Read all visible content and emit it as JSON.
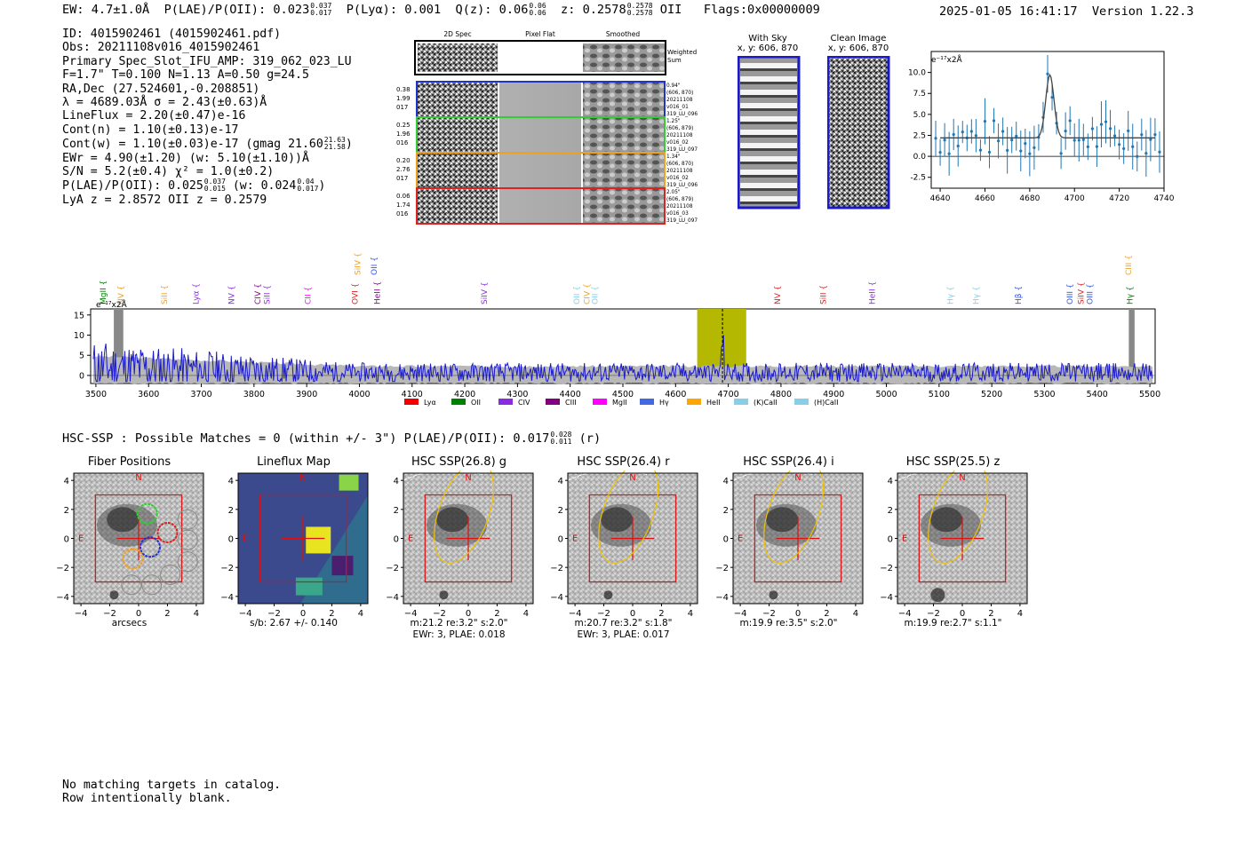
{
  "header": {
    "ew_label": "EW: 4.7±1.0Å",
    "plae_label": "P(LAE)/P(OII): 0.023",
    "plae_hi": "0.037",
    "plae_lo": "0.017",
    "plya_label": "P(Lyα): 0.001",
    "qz_label": "Q(z): 0.06",
    "qz_hi": "0.06",
    "qz_lo": "0.06",
    "z_label": "z: 0.2578",
    "z_hi": "0.2578",
    "z_lo": "0.2578",
    "z_line": "OII",
    "flags": "Flags:0x00000009",
    "timestamp": "2025-01-05 16:41:17",
    "version": "Version 1.22.3"
  },
  "info": {
    "id": "ID: 4015902461 (4015902461.pdf)",
    "obs": "Obs: 20211108v016_4015902461",
    "primary": "Primary Spec_Slot_IFU_AMP: 319_062_023_LU",
    "fparams": "F=1.7\"  T=0.100  N=1.13  A=0.50  g=24.5",
    "radec": "RA,Dec (27.524601,-0.208851)",
    "lambda": "λ = 4689.03Å  σ = 2.43(±0.63)Å",
    "lineflux": "LineFlux = 2.20(±0.47)e-16",
    "contn": "Cont(n) = 1.10(±0.13)e-17",
    "contw": "Cont(w) = 1.10(±0.03)e-17 (gmag 21.60",
    "contw_hi": "21.63",
    "contw_lo": "21.58",
    "contw_end": ")",
    "ewr": "EWr = 4.90(±1.20)  (w: 5.10(±1.10))Å",
    "sn": "S/N = 5.2(±0.4)  χ² = 1.0(±0.2)",
    "plae": "P(LAE)/P(OII): 0.025",
    "plae_hi": "0.037",
    "plae_lo": "0.015",
    "plae_w": "(w: 0.024",
    "plae_w_hi": "0.04",
    "plae_w_lo": "0.017",
    "plae_w_end": ")",
    "lya": "LyA z = 2.8572  OII z = 0.2579"
  },
  "spec2d": {
    "col_2dspec": "2D Spec",
    "col_pixelflat": "Pixel Flat",
    "col_smoothed": "Smoothed",
    "weighted": "Weighted\nSum",
    "rows": [
      {
        "l1": "0.38",
        "l2": "1.99",
        "l3": "017",
        "r1": "0.94\"",
        "r2": "(606, 870)",
        "r3": "20211108",
        "r4": "v016_01",
        "r5": "319_LU_096",
        "color": "#2233cc"
      },
      {
        "l1": "0.25",
        "l2": "1.96",
        "l3": "016",
        "r1": "1.25\"",
        "r2": "(606, 879)",
        "r3": "20211108",
        "r4": "v016_02",
        "r5": "319_LU_097",
        "color": "#33cc33"
      },
      {
        "l1": "0.20",
        "l2": "2.76",
        "l3": "017",
        "r1": "1.34\"",
        "r2": "(606, 870)",
        "r3": "20211108",
        "r4": "v016_02",
        "r5": "319_LU_096",
        "color": "#f0a020"
      },
      {
        "l1": "0.06",
        "l2": "1.74",
        "l3": "016",
        "r1": "2.05\"",
        "r2": "(606, 879)",
        "r3": "20211108",
        "r4": "v016_03",
        "r5": "319_LU_097",
        "color": "#dd2222"
      }
    ]
  },
  "sky": {
    "title": "With Sky",
    "coords": "x, y: 606, 870"
  },
  "clean": {
    "title": "Clean Image",
    "coords": "x, y: 606, 870"
  },
  "zoom_chart": {
    "ylabel": "e⁻¹⁷x2Å",
    "xticks": [
      "4640",
      "4660",
      "4680",
      "4700",
      "4720",
      "4740"
    ],
    "yticks": [
      "10.0",
      "7.5",
      "5.0",
      "2.5",
      "0.0",
      "-2.5"
    ]
  },
  "spectrum": {
    "ylabel": "e⁻¹⁷x2Å",
    "yticks": [
      "15",
      "10",
      "5",
      "0"
    ],
    "xticks": [
      "3500",
      "3600",
      "3700",
      "3800",
      "3900",
      "4000",
      "4100",
      "4200",
      "4300",
      "4400",
      "4500",
      "4600",
      "4700",
      "4800",
      "4900",
      "5000",
      "5100",
      "5200",
      "5300",
      "5400",
      "5500"
    ],
    "line_labels": [
      {
        "t": "MgII",
        "c": "#008000",
        "w": 3514,
        "row": 1
      },
      {
        "t": "NV",
        "c": "#f0a020",
        "w": 3547,
        "row": 1
      },
      {
        "t": "SiII",
        "c": "#f0a020",
        "w": 3630,
        "row": 1
      },
      {
        "t": "Lyα",
        "c": "#8a2be2",
        "w": 3690,
        "row": 1
      },
      {
        "t": "NV",
        "c": "#8a2be2",
        "w": 3757,
        "row": 1
      },
      {
        "t": "CIV",
        "c": "#8b008b",
        "w": 3807,
        "row": 1
      },
      {
        "t": "SiII",
        "c": "#8a2be2",
        "w": 3825,
        "row": 1
      },
      {
        "t": "CII",
        "c": "#ff00ff",
        "w": 3902,
        "row": 1
      },
      {
        "t": "OVI",
        "c": "#dd2222",
        "w": 3992,
        "row": 1
      },
      {
        "t": "HeII",
        "c": "#8b008b",
        "w": 4034,
        "row": 1
      },
      {
        "t": "SiIV",
        "c": "#f0a020",
        "w": 3997,
        "row": 0
      },
      {
        "t": "OII",
        "c": "#3355dd",
        "w": 4028,
        "row": 0
      },
      {
        "t": "SiIV",
        "c": "#8a2be2",
        "w": 4237,
        "row": 1
      },
      {
        "t": "OII",
        "c": "#87ceeb",
        "w": 4412,
        "row": 1
      },
      {
        "t": "CIV",
        "c": "#f0a020",
        "w": 4432,
        "row": 1
      },
      {
        "t": "OII",
        "c": "#87ceeb",
        "w": 4447,
        "row": 1
      },
      {
        "t": "NV",
        "c": "#dd2222",
        "w": 4793,
        "row": 1
      },
      {
        "t": "SiII",
        "c": "#dd2222",
        "w": 4880,
        "row": 1
      },
      {
        "t": "HeII",
        "c": "#8a2be2",
        "w": 4973,
        "row": 1
      },
      {
        "t": "Hγ",
        "c": "#87ceeb",
        "w": 5121,
        "row": 1
      },
      {
        "t": "Hγ",
        "c": "#87ceeb",
        "w": 5170,
        "row": 1
      },
      {
        "t": "Hβ",
        "c": "#3355dd",
        "w": 5250,
        "row": 1
      },
      {
        "t": "OIII",
        "c": "#3355dd",
        "w": 5348,
        "row": 1
      },
      {
        "t": "SiIV",
        "c": "#dd2222",
        "w": 5369,
        "row": 1
      },
      {
        "t": "OIII",
        "c": "#3355dd",
        "w": 5386,
        "row": 1
      },
      {
        "t": "CIII",
        "c": "#f0a020",
        "w": 5459,
        "row": 0
      },
      {
        "t": "Hγ",
        "c": "#008000",
        "w": 5462,
        "row": 1
      }
    ],
    "legend": [
      {
        "t": "Lyα",
        "c": "#ee0000"
      },
      {
        "t": "OII",
        "c": "#008000"
      },
      {
        "t": "CIV",
        "c": "#8a2be2"
      },
      {
        "t": "CIII",
        "c": "#800080"
      },
      {
        "t": "MgII",
        "c": "#ff00ff"
      },
      {
        "t": "Hγ",
        "c": "#4169e1"
      },
      {
        "t": "HeII",
        "c": "#ffa500"
      },
      {
        "t": "(K)CaII",
        "c": "#87ceeb"
      },
      {
        "t": "(H)CaII",
        "c": "#87ceeb"
      }
    ]
  },
  "hsc": {
    "title": "HSC-SSP : Possible Matches = 0 (within +/- 3\")  P(LAE)/P(OII): 0.017",
    "hi": "0.028",
    "lo": "0.011",
    "band": "(r)"
  },
  "cutouts": [
    {
      "title": "Fiber Positions",
      "cap1": "arcsecs",
      "cap2": ""
    },
    {
      "title": "Lineflux Map",
      "cap1": "s/b: 2.67 +/- 0.140",
      "cap2": ""
    },
    {
      "title": "HSC SSP(26.8) g",
      "cap1": "m:21.2  re:3.2\"  s:2.0\"",
      "cap2": "EWr: 3, PLAE: 0.018"
    },
    {
      "title": "HSC SSP(26.4) r",
      "cap1": "m:20.7  re:3.2\"  s:1.8\"",
      "cap2": "EWr: 3, PLAE: 0.017"
    },
    {
      "title": "HSC SSP(26.4) i",
      "cap1": "m:19.9  re:3.5\"  s:2.0\"",
      "cap2": ""
    },
    {
      "title": "HSC SSP(25.5) z",
      "cap1": "m:19.9  re:2.7\"  s:1.1\"",
      "cap2": ""
    }
  ],
  "cutout_axis": {
    "ticks": [
      "4",
      "2",
      "0",
      "−2",
      "−4"
    ],
    "xticks": [
      "−4",
      "−2",
      "0",
      "2",
      "4"
    ],
    "n": "N",
    "e": "E"
  },
  "footer": {
    "line1": "No matching targets in catalog.",
    "line2": "Row intentionally blank."
  }
}
